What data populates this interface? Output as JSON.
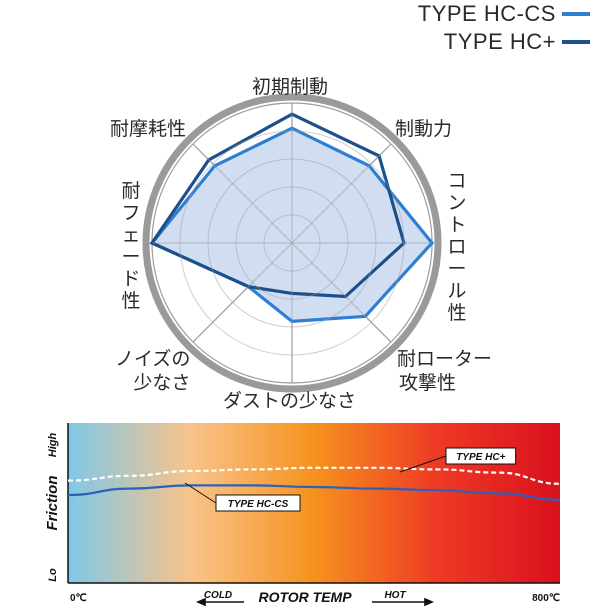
{
  "legend": [
    {
      "label": "TYPE HC-CS",
      "color": "#2f7fd1"
    },
    {
      "label": "TYPE HC+",
      "color": "#1d4f8c"
    }
  ],
  "chart_data": [
    {
      "type": "radar",
      "axes": [
        "初期制動",
        "制動力",
        "コントロール性",
        "耐ローター攻撃性",
        "ダストの少なさ",
        "ノイズの少なさ",
        "耐フェード性",
        "耐摩耗性"
      ],
      "axis_display": {
        "initial": "初期制動",
        "power": "制動力",
        "control": "コントロール性",
        "rotor_line1": "耐ローター",
        "rotor_line2": "攻撃性",
        "dust": "ダストの少なさ",
        "noise_line1": "ノイズの",
        "noise_line2": "少なさ",
        "fade": "耐フェード性",
        "wear": "耐摩耗性"
      },
      "rings": 5,
      "series": [
        {
          "name": "TYPE HC-CS",
          "values": [
            4.1,
            3.9,
            5.0,
            3.7,
            2.8,
            2.2,
            5.0,
            3.9
          ],
          "color": "#2f7fd1"
        },
        {
          "name": "TYPE HC+",
          "values": [
            4.6,
            4.4,
            4.0,
            2.7,
            1.8,
            2.2,
            5.0,
            4.2
          ],
          "color": "#1d4f8c"
        }
      ],
      "fill": "#c9d8ef",
      "grid_color": "#888888"
    },
    {
      "type": "line",
      "ylabel": "Friction",
      "yticks": [
        "High",
        "Lo"
      ],
      "xlabel": "ROTOR TEMP",
      "xticks": [
        "0℃",
        "800℃"
      ],
      "x_range": [
        0,
        800
      ],
      "cold_label": "COLD",
      "hot_label": "HOT",
      "series": [
        {
          "name": "TYPE HC+",
          "style": "dashed",
          "color": "#ffffff",
          "x": [
            0,
            100,
            200,
            300,
            400,
            500,
            600,
            700,
            800
          ],
          "y": [
            0.64,
            0.67,
            0.7,
            0.71,
            0.72,
            0.72,
            0.71,
            0.69,
            0.62
          ]
        },
        {
          "name": "TYPE HC-CS",
          "style": "solid",
          "color": "#2a62b8",
          "x": [
            0,
            100,
            200,
            300,
            400,
            500,
            600,
            700,
            800
          ],
          "y": [
            0.55,
            0.59,
            0.61,
            0.61,
            0.6,
            0.59,
            0.58,
            0.56,
            0.52
          ]
        }
      ],
      "ylim": [
        0,
        1
      ],
      "gradient_colors": [
        "#7fc8e8",
        "#f9c38a",
        "#f6921e",
        "#ee3a24",
        "#d9101e"
      ]
    }
  ]
}
